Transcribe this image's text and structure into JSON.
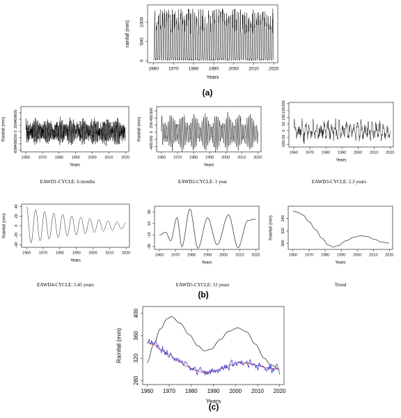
{
  "panel_labels": {
    "a": "(a)",
    "b": "(b)",
    "c": "(c)"
  },
  "captions": {
    "d1": "EAWD1-CYCLE: 6 months",
    "d2": "EAWD2-CYCLE: 1 year",
    "d3": "EAWD3-CYCLE: 2.3 years",
    "d4": "EAWD4-CYCLE: 5.45 years",
    "d5": "EAWD5-CYCLE: 12 years",
    "trend": "Trend"
  },
  "chart_data": [
    {
      "id": "a",
      "type": "line",
      "xlabel": "Years",
      "ylabel": "rainfall (mm)",
      "xlim": [
        1957,
        2022
      ],
      "ylim": [
        -50,
        1450
      ],
      "xticks": [
        1960,
        1970,
        1980,
        1990,
        2000,
        2010,
        2020
      ],
      "yticks": [
        0,
        500,
        1000
      ],
      "signal": {
        "kind": "monthly_rainfall",
        "start": 1960,
        "end": 2020,
        "min": 0,
        "max": 1350
      },
      "color": "#000000"
    },
    {
      "id": "d1",
      "type": "line",
      "xlabel": "Years",
      "ylabel": "Rainfall (mm)",
      "xlim": [
        1957,
        2022
      ],
      "ylim": [
        -650,
        800
      ],
      "xticks": [
        1960,
        1970,
        1980,
        1990,
        2000,
        2010,
        2020
      ],
      "yticks": [
        -600,
        -400,
        -200,
        0,
        200,
        400,
        600
      ],
      "signal": {
        "kind": "cycle",
        "period": 0.5,
        "amplitude": 300,
        "noise": 160,
        "start": 1960,
        "end": 2020
      },
      "color": "#000000"
    },
    {
      "id": "d2",
      "type": "line",
      "xlabel": "Years",
      "ylabel": "Rainfall (mm)",
      "xlim": [
        1957,
        2022
      ],
      "ylim": [
        -550,
        720
      ],
      "xticks": [
        1960,
        1970,
        1980,
        1990,
        2000,
        2010,
        2020
      ],
      "yticks": [
        -400,
        -200,
        0,
        200,
        400,
        600
      ],
      "signal": {
        "kind": "cycle",
        "period": 1,
        "amplitude": 480,
        "noise": 50,
        "start": 1960,
        "end": 2020
      },
      "color": "#000000"
    },
    {
      "id": "d3",
      "type": "line",
      "xlabel": "Years",
      "ylabel": "",
      "xlim": [
        1957,
        2022
      ],
      "ylim": [
        -120,
        210
      ],
      "xticks": [
        1960,
        1970,
        1980,
        1990,
        2000,
        2010,
        2020
      ],
      "yticks": [
        -100,
        -50,
        0,
        50,
        100,
        150,
        200
      ],
      "signal": {
        "kind": "cycle",
        "period": 2.3,
        "amplitude": 60,
        "noise": 40,
        "start": 1960,
        "end": 2020
      },
      "color": "#000000"
    },
    {
      "id": "d4",
      "type": "line",
      "xlabel": "Years",
      "ylabel": "Rainfall (mm)",
      "xlim": [
        1957,
        2022
      ],
      "ylim": [
        -45,
        45
      ],
      "xticks": [
        1960,
        1970,
        1980,
        1990,
        2000,
        2010,
        2020
      ],
      "yticks": [
        -40,
        -20,
        0,
        20,
        40
      ],
      "signal": {
        "kind": "damped",
        "period": 5.45,
        "amp_start": 40,
        "amp_end": 6,
        "start": 1960,
        "end": 2020
      },
      "color": "#000000"
    },
    {
      "id": "d5",
      "type": "line",
      "xlabel": "Years",
      "ylabel": "",
      "xlim": [
        1957,
        2022
      ],
      "ylim": [
        -35,
        40
      ],
      "xticks": [
        1960,
        1970,
        1980,
        1990,
        2000,
        2010,
        2020
      ],
      "yticks": [
        -30,
        -10,
        10,
        30
      ],
      "points": [
        [
          1960,
          -10
        ],
        [
          1964,
          -5
        ],
        [
          1967,
          -20
        ],
        [
          1971,
          20
        ],
        [
          1974,
          -30
        ],
        [
          1979,
          35
        ],
        [
          1984,
          -33
        ],
        [
          1990,
          20
        ],
        [
          1996,
          -27
        ],
        [
          2003,
          25
        ],
        [
          2009,
          -32
        ],
        [
          2015,
          15
        ],
        [
          2020,
          18
        ]
      ],
      "color": "#000000"
    },
    {
      "id": "trend",
      "type": "line",
      "xlabel": "Years",
      "ylabel": "Rainfall (mm)",
      "xlim": [
        1957,
        2022
      ],
      "ylim": [
        290,
        360
      ],
      "xticks": [
        1960,
        1970,
        1980,
        1990,
        2000,
        2010,
        2020
      ],
      "yticks": [
        300,
        320,
        340
      ],
      "points": [
        [
          1960,
          352
        ],
        [
          1963,
          350
        ],
        [
          1966,
          346
        ],
        [
          1970,
          335
        ],
        [
          1974,
          322
        ],
        [
          1978,
          308
        ],
        [
          1982,
          297
        ],
        [
          1985,
          294
        ],
        [
          1988,
          296
        ],
        [
          1993,
          304
        ],
        [
          1998,
          310
        ],
        [
          2002,
          312
        ],
        [
          2006,
          311
        ],
        [
          2011,
          306
        ],
        [
          2015,
          302
        ],
        [
          2020,
          300
        ]
      ],
      "color": "#000000"
    },
    {
      "id": "c",
      "type": "line",
      "xlabel": "Years",
      "ylabel": "Rainfall (mm)",
      "xlim": [
        1958,
        2022
      ],
      "ylim": [
        273,
        412
      ],
      "xticks": [
        1960,
        1970,
        1980,
        1990,
        2000,
        2010,
        2020
      ],
      "yticks": [
        280,
        320,
        360,
        400
      ],
      "series": [
        {
          "points": [
            [
              1960,
              312
            ],
            [
              1963,
              345
            ],
            [
              1966,
              372
            ],
            [
              1969,
              390
            ],
            [
              1971,
              394
            ],
            [
              1975,
              382
            ],
            [
              1979,
              362
            ],
            [
              1983,
              342
            ],
            [
              1986,
              333
            ],
            [
              1989,
              336
            ],
            [
              1993,
              353
            ],
            [
              1997,
              368
            ],
            [
              2001,
              374
            ],
            [
              2005,
              367
            ],
            [
              2009,
              345
            ],
            [
              2013,
              320
            ],
            [
              2016,
              308
            ],
            [
              2020,
              300
            ]
          ],
          "color": "#333333"
        },
        {
          "points": [
            [
              1960,
              348
            ],
            [
              1963,
              344
            ],
            [
              1966,
              336
            ],
            [
              1970,
              326
            ],
            [
              1974,
              315
            ],
            [
              1978,
              305
            ],
            [
              1982,
              298
            ],
            [
              1986,
              294
            ],
            [
              1990,
              296
            ],
            [
              1994,
              302
            ],
            [
              1998,
              308
            ],
            [
              2002,
              312
            ],
            [
              2006,
              311
            ],
            [
              2010,
              307
            ],
            [
              2014,
              303
            ],
            [
              2018,
              301
            ],
            [
              2020,
              300
            ]
          ],
          "color": "#d9534f"
        },
        {
          "kind": "observed",
          "base_index": 1,
          "noise": 6,
          "color": "#3a3ad6"
        }
      ]
    }
  ]
}
